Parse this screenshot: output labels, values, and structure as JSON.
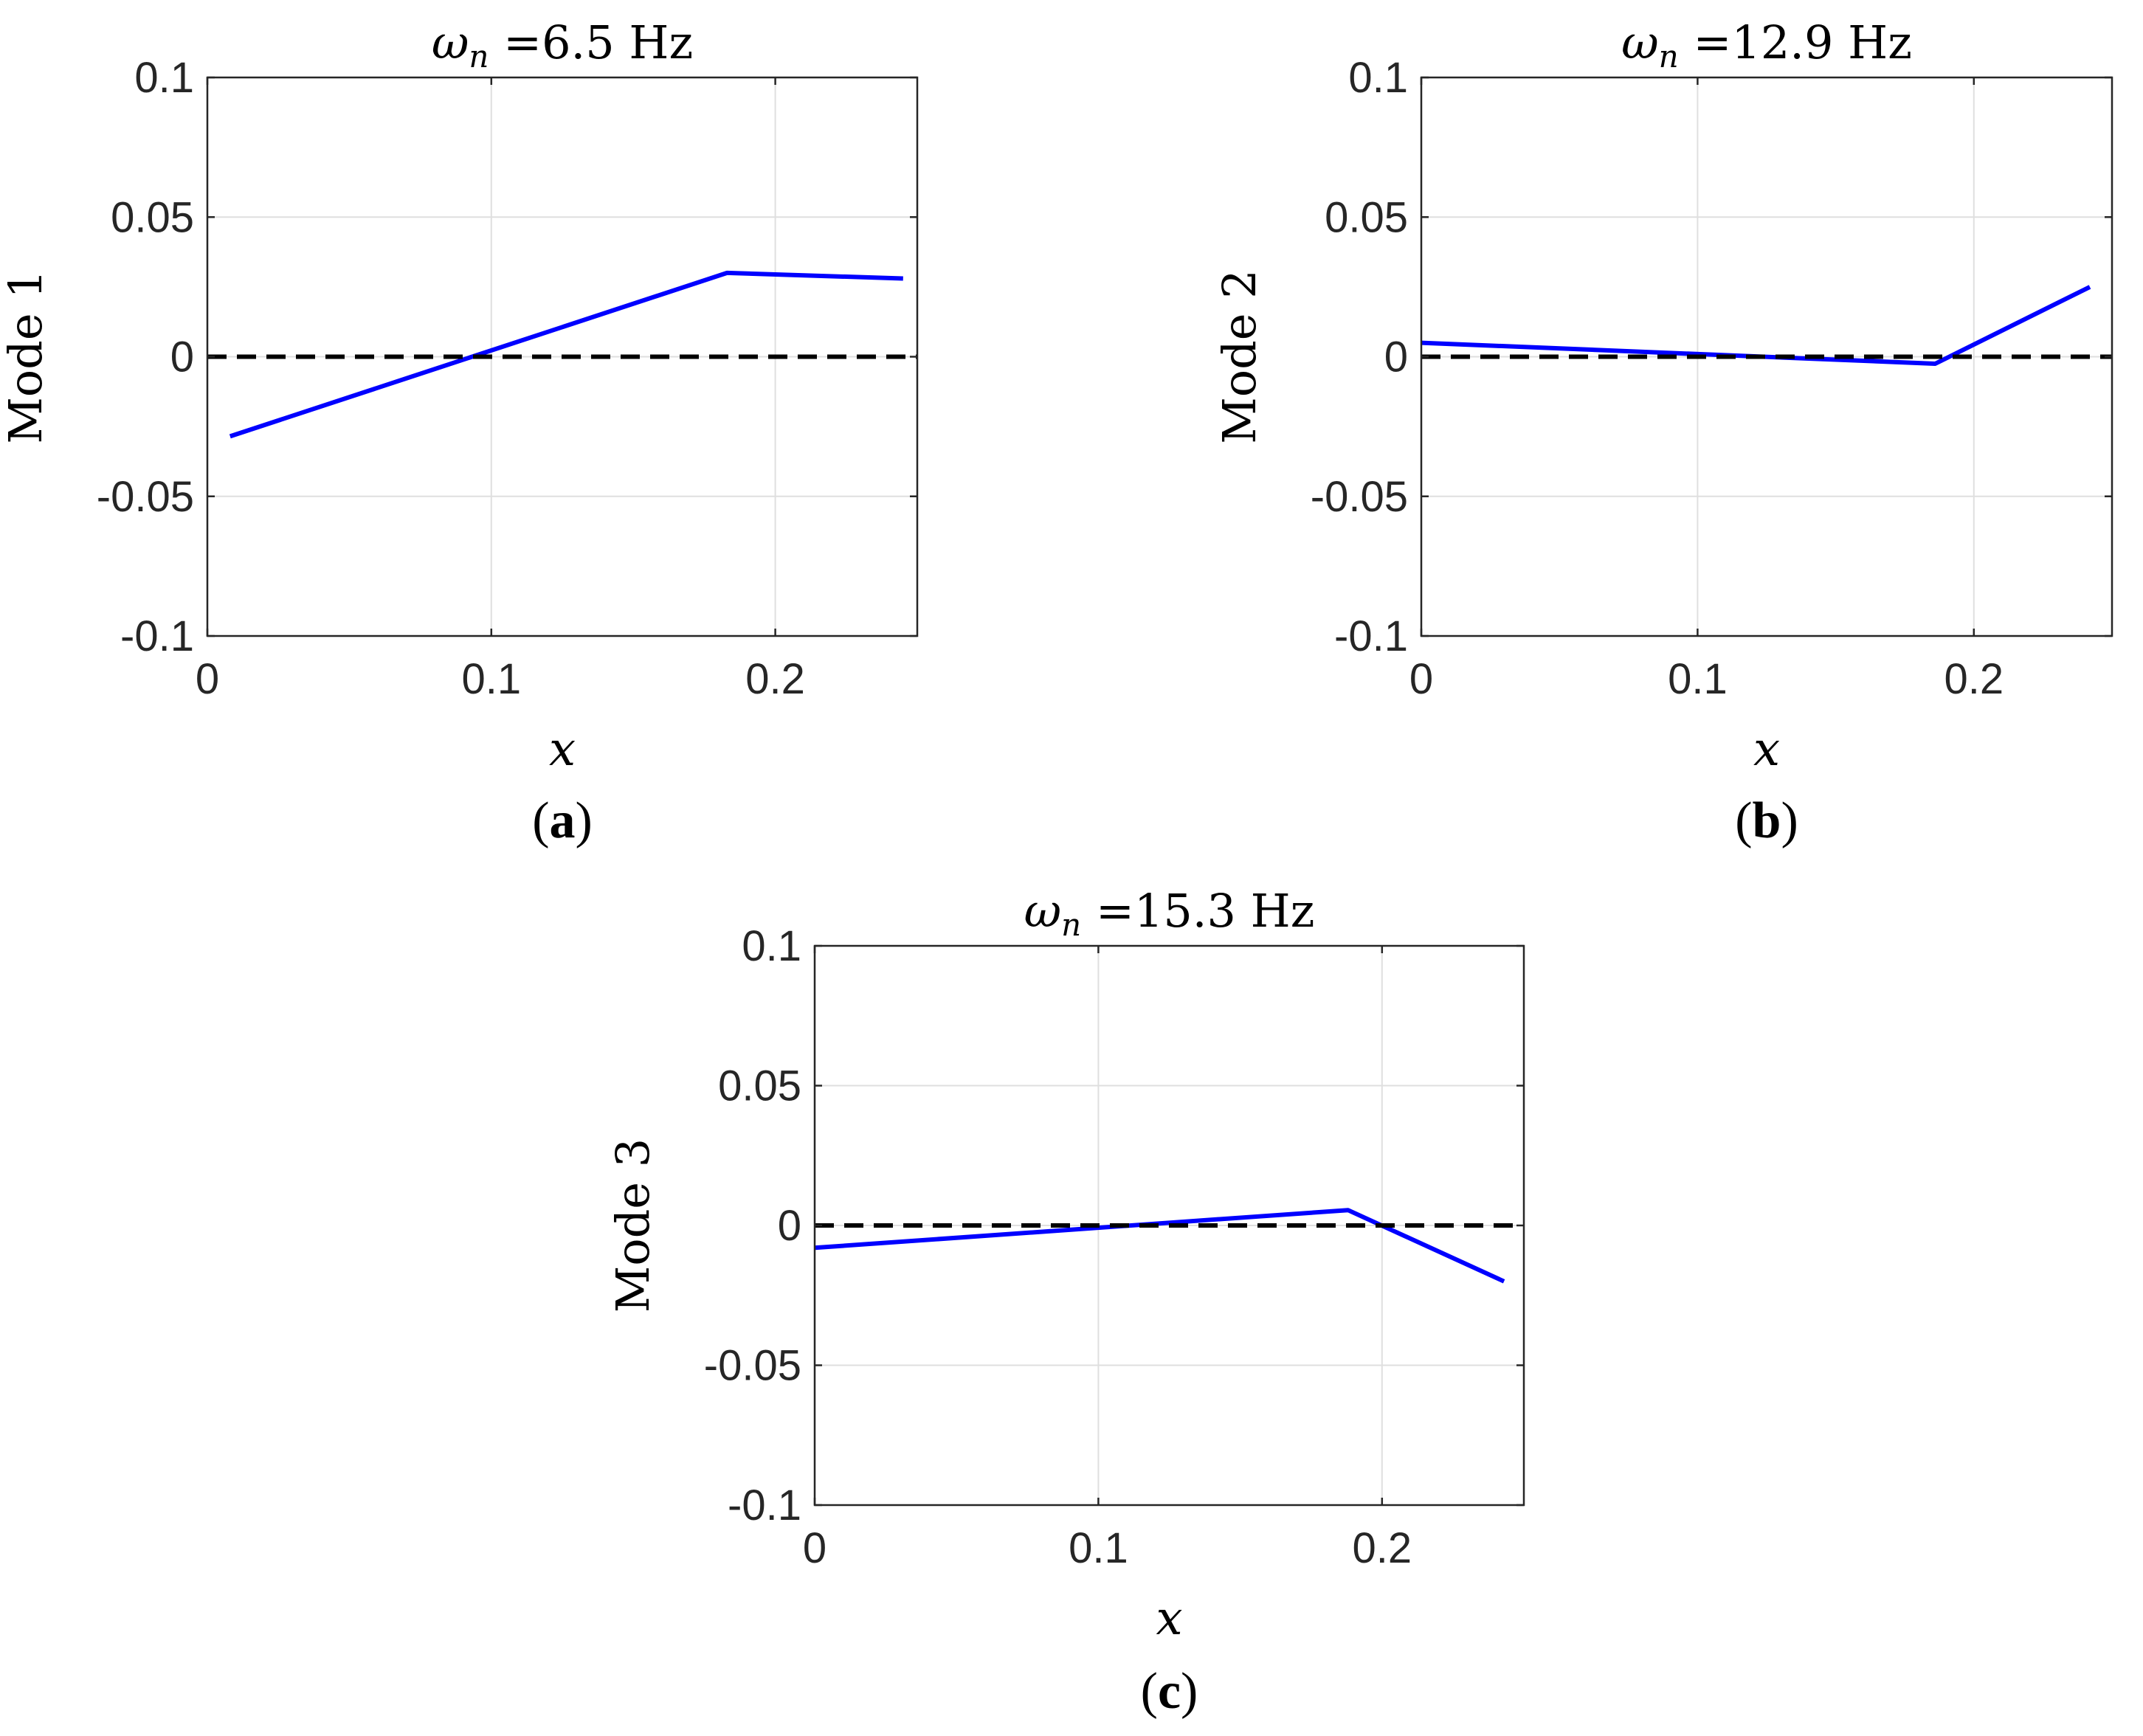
{
  "chart_data": [
    {
      "type": "line",
      "panel": "(a)",
      "panel_letter": "a",
      "title_symbol": "ω",
      "title_subscript": "n",
      "title_rest": " =6.5 Hz",
      "xlabel": "x",
      "ylabel": "Mode 1",
      "xlim": [
        0,
        0.25
      ],
      "ylim": [
        -0.1,
        0.1
      ],
      "xticks": [
        0,
        0.1,
        0.2
      ],
      "xtick_labels": [
        "0",
        "0.1",
        "0.2"
      ],
      "yticks": [
        0.1,
        0.05,
        0,
        -0.05,
        -0.1
      ],
      "ytick_labels": [
        "0.1",
        "0.05",
        "0",
        "-0.05",
        "-0.1"
      ],
      "grid": true,
      "series": [
        {
          "name": "mode shape",
          "color": "#0000ff",
          "style": "solid",
          "x": [
            0.008,
            0.183,
            0.245
          ],
          "y": [
            -0.0285,
            0.03,
            0.028
          ]
        },
        {
          "name": "zero line",
          "color": "#000000",
          "style": "dashed",
          "x": [
            0,
            0.25
          ],
          "y": [
            0,
            0
          ]
        }
      ]
    },
    {
      "type": "line",
      "panel": "(b)",
      "panel_letter": "b",
      "title_symbol": "ω",
      "title_subscript": "n",
      "title_rest": " =12.9 Hz",
      "xlabel": "x",
      "ylabel": "Mode 2",
      "xlim": [
        0,
        0.25
      ],
      "ylim": [
        -0.1,
        0.1
      ],
      "xticks": [
        0,
        0.1,
        0.2
      ],
      "xtick_labels": [
        "0",
        "0.1",
        "0.2"
      ],
      "yticks": [
        0.1,
        0.05,
        0,
        -0.05,
        -0.1
      ],
      "ytick_labels": [
        "0.1",
        "0.05",
        "0",
        "-0.05",
        "-0.1"
      ],
      "grid": true,
      "series": [
        {
          "name": "mode shape",
          "color": "#0000ff",
          "style": "solid",
          "x": [
            0,
            0.186,
            0.242
          ],
          "y": [
            0.005,
            -0.0025,
            0.025
          ]
        },
        {
          "name": "zero line",
          "color": "#000000",
          "style": "dashed",
          "x": [
            0,
            0.25
          ],
          "y": [
            0,
            0
          ]
        }
      ]
    },
    {
      "type": "line",
      "panel": "(c)",
      "panel_letter": "c",
      "title_symbol": "ω",
      "title_subscript": "n",
      "title_rest": " =15.3 Hz",
      "xlabel": "x",
      "ylabel": "Mode 3",
      "xlim": [
        0,
        0.25
      ],
      "ylim": [
        -0.1,
        0.1
      ],
      "xticks": [
        0,
        0.1,
        0.2
      ],
      "xtick_labels": [
        "0",
        "0.1",
        "0.2"
      ],
      "yticks": [
        0.1,
        0.05,
        0,
        -0.05,
        -0.1
      ],
      "ytick_labels": [
        "0.1",
        "0.05",
        "0",
        "-0.05",
        "-0.1"
      ],
      "grid": true,
      "series": [
        {
          "name": "mode shape",
          "color": "#0000ff",
          "style": "solid",
          "x": [
            0,
            0.188,
            0.243
          ],
          "y": [
            -0.008,
            0.0055,
            -0.02
          ]
        },
        {
          "name": "zero line",
          "color": "#000000",
          "style": "dashed",
          "x": [
            0,
            0.25
          ],
          "y": [
            0,
            0
          ]
        }
      ]
    }
  ]
}
